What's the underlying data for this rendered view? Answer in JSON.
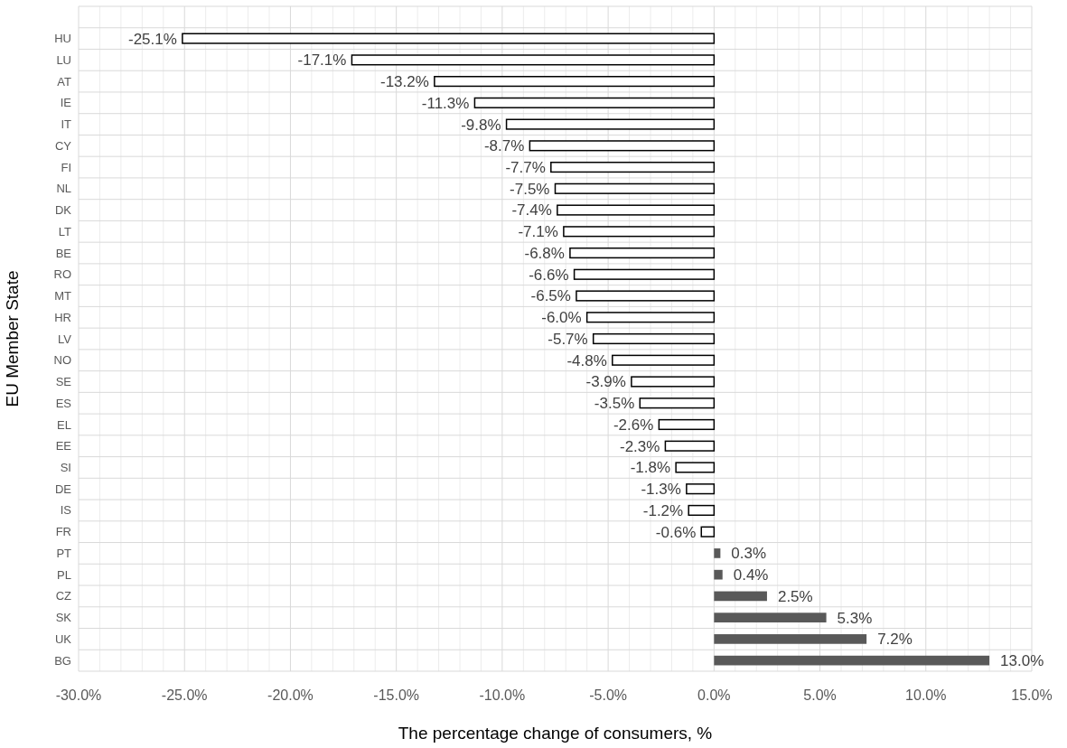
{
  "chart_data": {
    "type": "bar",
    "orientation": "horizontal",
    "xlabel": "The percentage change of consumers, %",
    "ylabel": "EU Member State",
    "categories": [
      "HU",
      "LU",
      "AT",
      "IE",
      "IT",
      "CY",
      "FI",
      "NL",
      "DK",
      "LT",
      "BE",
      "RO",
      "MT",
      "HR",
      "LV",
      "NO",
      "SE",
      "ES",
      "EL",
      "EE",
      "SI",
      "DE",
      "IS",
      "FR",
      "PT",
      "PL",
      "CZ",
      "SK",
      "UK",
      "BG"
    ],
    "values": [
      -25.1,
      -17.1,
      -13.2,
      -11.3,
      -9.8,
      -8.7,
      -7.7,
      -7.5,
      -7.4,
      -7.1,
      -6.8,
      -6.6,
      -6.5,
      -6.0,
      -5.7,
      -4.8,
      -3.9,
      -3.5,
      -2.6,
      -2.3,
      -1.8,
      -1.3,
      -1.2,
      -0.6,
      0.3,
      0.4,
      2.5,
      5.3,
      7.2,
      13.0
    ],
    "value_labels": [
      "-25.1%",
      "-17.1%",
      "-13.2%",
      "-11.3%",
      "-9.8%",
      "-8.7%",
      "-7.7%",
      "-7.5%",
      "-7.4%",
      "-7.1%",
      "-6.8%",
      "-6.6%",
      "-6.5%",
      "-6.0%",
      "-5.7%",
      "-4.8%",
      "-3.9%",
      "-3.5%",
      "-2.6%",
      "-2.3%",
      "-1.8%",
      "-1.3%",
      "-1.2%",
      "-0.6%",
      "0.3%",
      "0.4%",
      "2.5%",
      "5.3%",
      "7.2%",
      "13.0%"
    ],
    "colors": [
      "#ffffff",
      "#ffffff",
      "#ffffff",
      "#ffffff",
      "#ffffff",
      "#ffffff",
      "#ffffff",
      "#ffffff",
      "#ffffff",
      "#ffffff",
      "#ffffff",
      "#ffffff",
      "#ffffff",
      "#ffffff",
      "#ffffff",
      "#ffffff",
      "#ffffff",
      "#ffffff",
      "#ffffff",
      "#ffffff",
      "#ffffff",
      "#ffffff",
      "#ffffff",
      "#ffffff",
      "#595959",
      "#595959",
      "#595959",
      "#595959",
      "#595959",
      "#595959"
    ],
    "xlim": [
      -30,
      15
    ],
    "xticks": [
      {
        "value": -30,
        "label": "-30.0%"
      },
      {
        "value": -25,
        "label": "-25.0%"
      },
      {
        "value": -20,
        "label": "-20.0%"
      },
      {
        "value": -15,
        "label": "-15.0%"
      },
      {
        "value": -10,
        "label": "-10.0%"
      },
      {
        "value": -5,
        "label": "-5.0%"
      },
      {
        "value": 0,
        "label": "0.0%"
      },
      {
        "value": 5,
        "label": "5.0%"
      },
      {
        "value": 10,
        "label": "10.0%"
      },
      {
        "value": 15,
        "label": "15.0%"
      }
    ],
    "grid": true
  }
}
